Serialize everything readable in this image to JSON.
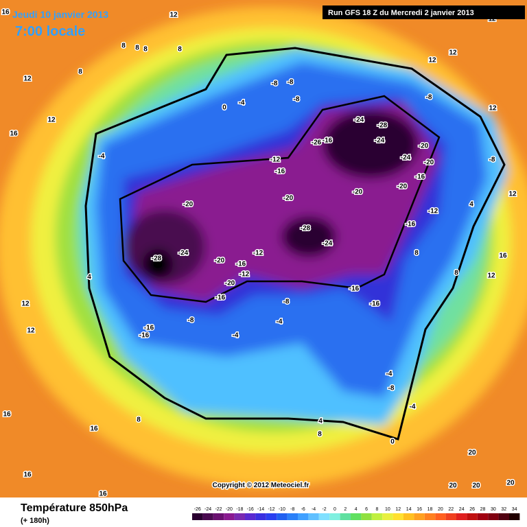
{
  "header": {
    "date": "Jeudi 10 janvier 2013",
    "time": "7:00 locale",
    "run": "Run GFS 18 Z du Mercredi 2 janvier 2013"
  },
  "footer": {
    "title": "Température 850hPa",
    "lead": "(+ 180h)",
    "copyright": "Copyright © 2012 Meteociel.fr"
  },
  "map": {
    "contour_labels": [
      16,
      12,
      12,
      8,
      8,
      8,
      8,
      12,
      12,
      8,
      12,
      12,
      16,
      -8,
      -8,
      -8,
      -4,
      0,
      -8,
      12,
      -24,
      -28,
      -24,
      -26,
      -16,
      -20,
      -24,
      -20,
      -16,
      -20,
      -12,
      -16,
      -20,
      -20,
      -12,
      -16,
      -8,
      -4,
      -20,
      -28,
      -24,
      -28,
      -24,
      -20,
      -16,
      -12,
      -12,
      -20,
      -16,
      -8,
      -16,
      -16,
      -16,
      -16,
      -8,
      -4,
      -4,
      -8,
      -4,
      -4,
      0,
      4,
      8,
      16,
      16,
      16,
      16,
      8,
      20,
      20,
      20,
      20,
      12,
      12,
      8,
      12,
      16,
      12,
      8,
      4,
      4
    ]
  },
  "scale": {
    "ticks": [
      -26,
      -24,
      -22,
      -20,
      -18,
      -16,
      -14,
      -12,
      -10,
      -8,
      -6,
      -4,
      -2,
      0,
      2,
      4,
      6,
      8,
      10,
      12,
      14,
      16,
      18,
      20,
      22,
      24,
      26,
      28,
      30,
      32,
      34
    ],
    "colors": [
      "#2a0030",
      "#4a0a50",
      "#6a1070",
      "#8a1a90",
      "#7a2ab0",
      "#5a2ad0",
      "#3a30e0",
      "#2a40f0",
      "#2060f0",
      "#2a80f8",
      "#40a0ff",
      "#60c0ff",
      "#80e0ff",
      "#80f0e0",
      "#60e0a0",
      "#60e060",
      "#90e040",
      "#c0f040",
      "#e8f040",
      "#ffe030",
      "#ffc020",
      "#ffa020",
      "#ff8020",
      "#ff6020",
      "#f04020",
      "#e02020",
      "#c01010",
      "#a00010",
      "#800010",
      "#500010",
      "#200000"
    ]
  }
}
